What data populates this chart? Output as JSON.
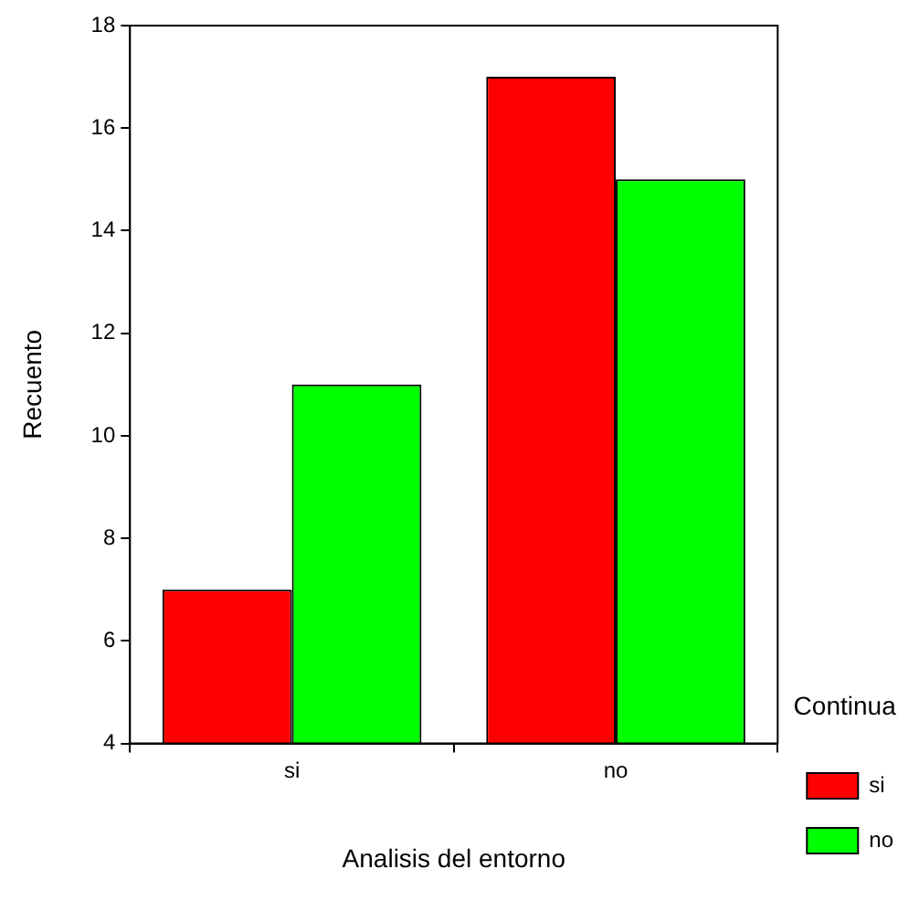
{
  "chart_data": {
    "type": "bar",
    "xlabel": "Analisis del entorno",
    "ylabel": "Recuento",
    "legend_title": "Continua",
    "categories": [
      "si",
      "no"
    ],
    "series": [
      {
        "name": "si",
        "color": "#ff0000",
        "values": [
          7,
          17
        ]
      },
      {
        "name": "no",
        "color": "#00ff00",
        "values": [
          11,
          15
        ]
      }
    ],
    "ylim": [
      4,
      18
    ],
    "yticks": [
      4,
      6,
      8,
      10,
      12,
      14,
      16,
      18
    ],
    "grid": false,
    "legend": "right"
  }
}
